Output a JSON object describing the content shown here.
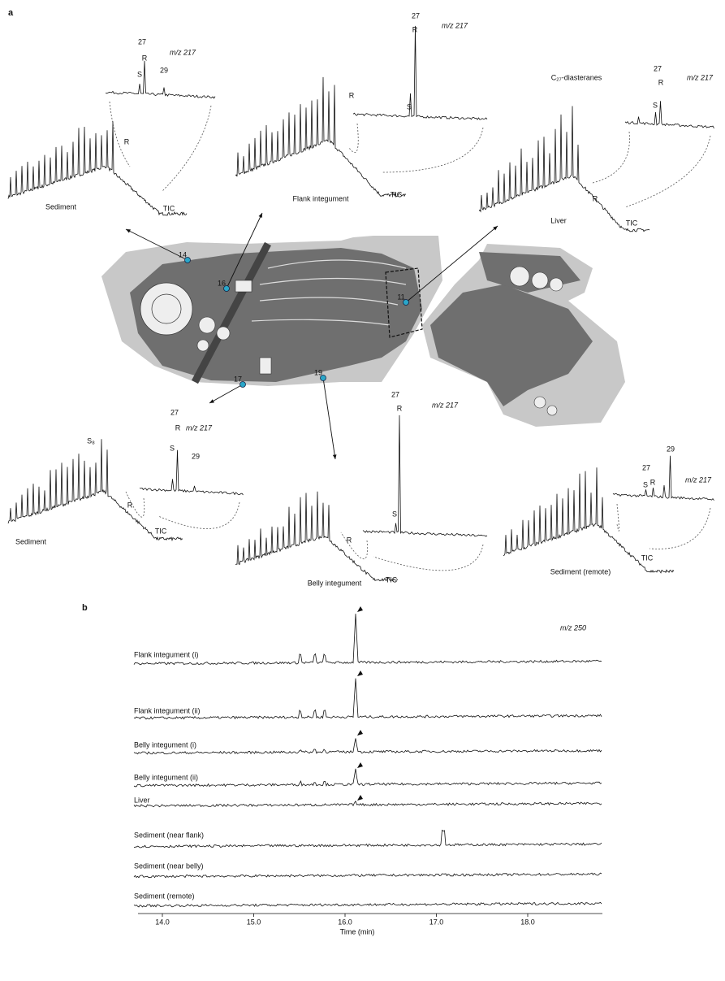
{
  "panel_a": {
    "label": "a",
    "sites": [
      "14",
      "16",
      "11",
      "17",
      "19"
    ],
    "insets": [
      {
        "sample": "Sediment",
        "trace": "TIC",
        "ion": "m/z 217",
        "peaks": [
          "27",
          "R",
          "S",
          "29",
          "R"
        ]
      },
      {
        "sample": "Flank integument",
        "trace": "TIC",
        "ion": "m/z 217",
        "peaks": [
          "27",
          "R",
          "S",
          "R"
        ]
      },
      {
        "sample": "Liver",
        "trace": "TIC",
        "ion": "m/z 217",
        "peaks": [
          "C₂₇-diasteranes",
          "27",
          "R",
          "S",
          "R"
        ]
      },
      {
        "sample": "Sediment",
        "trace": "TIC",
        "ion": "m/z 217",
        "peaks": [
          "S₈",
          "27",
          "R",
          "S",
          "29",
          "R"
        ]
      },
      {
        "sample": "Belly integument",
        "trace": "TIC",
        "ion": "m/z 217",
        "peaks": [
          "27",
          "R",
          "S",
          "R"
        ]
      },
      {
        "sample": "Sediment (remote)",
        "trace": "TIC",
        "ion": "m/z 217",
        "peaks": [
          "29",
          "27",
          "S",
          "R"
        ]
      }
    ]
  },
  "panel_b": {
    "label": "b",
    "ion": "m/z 250",
    "traces": [
      "Flank integument (i)",
      "Flank integument (ii)",
      "Belly integument (i)",
      "Belly integument (ii)",
      "Liver",
      "Sediment (near flank)",
      "Sediment (near belly)",
      "Sediment (remote)"
    ],
    "ticks": [
      "14.0",
      "15.0",
      "16.0",
      "17.0",
      "18.0"
    ],
    "axis_label": "Time (min)"
  }
}
